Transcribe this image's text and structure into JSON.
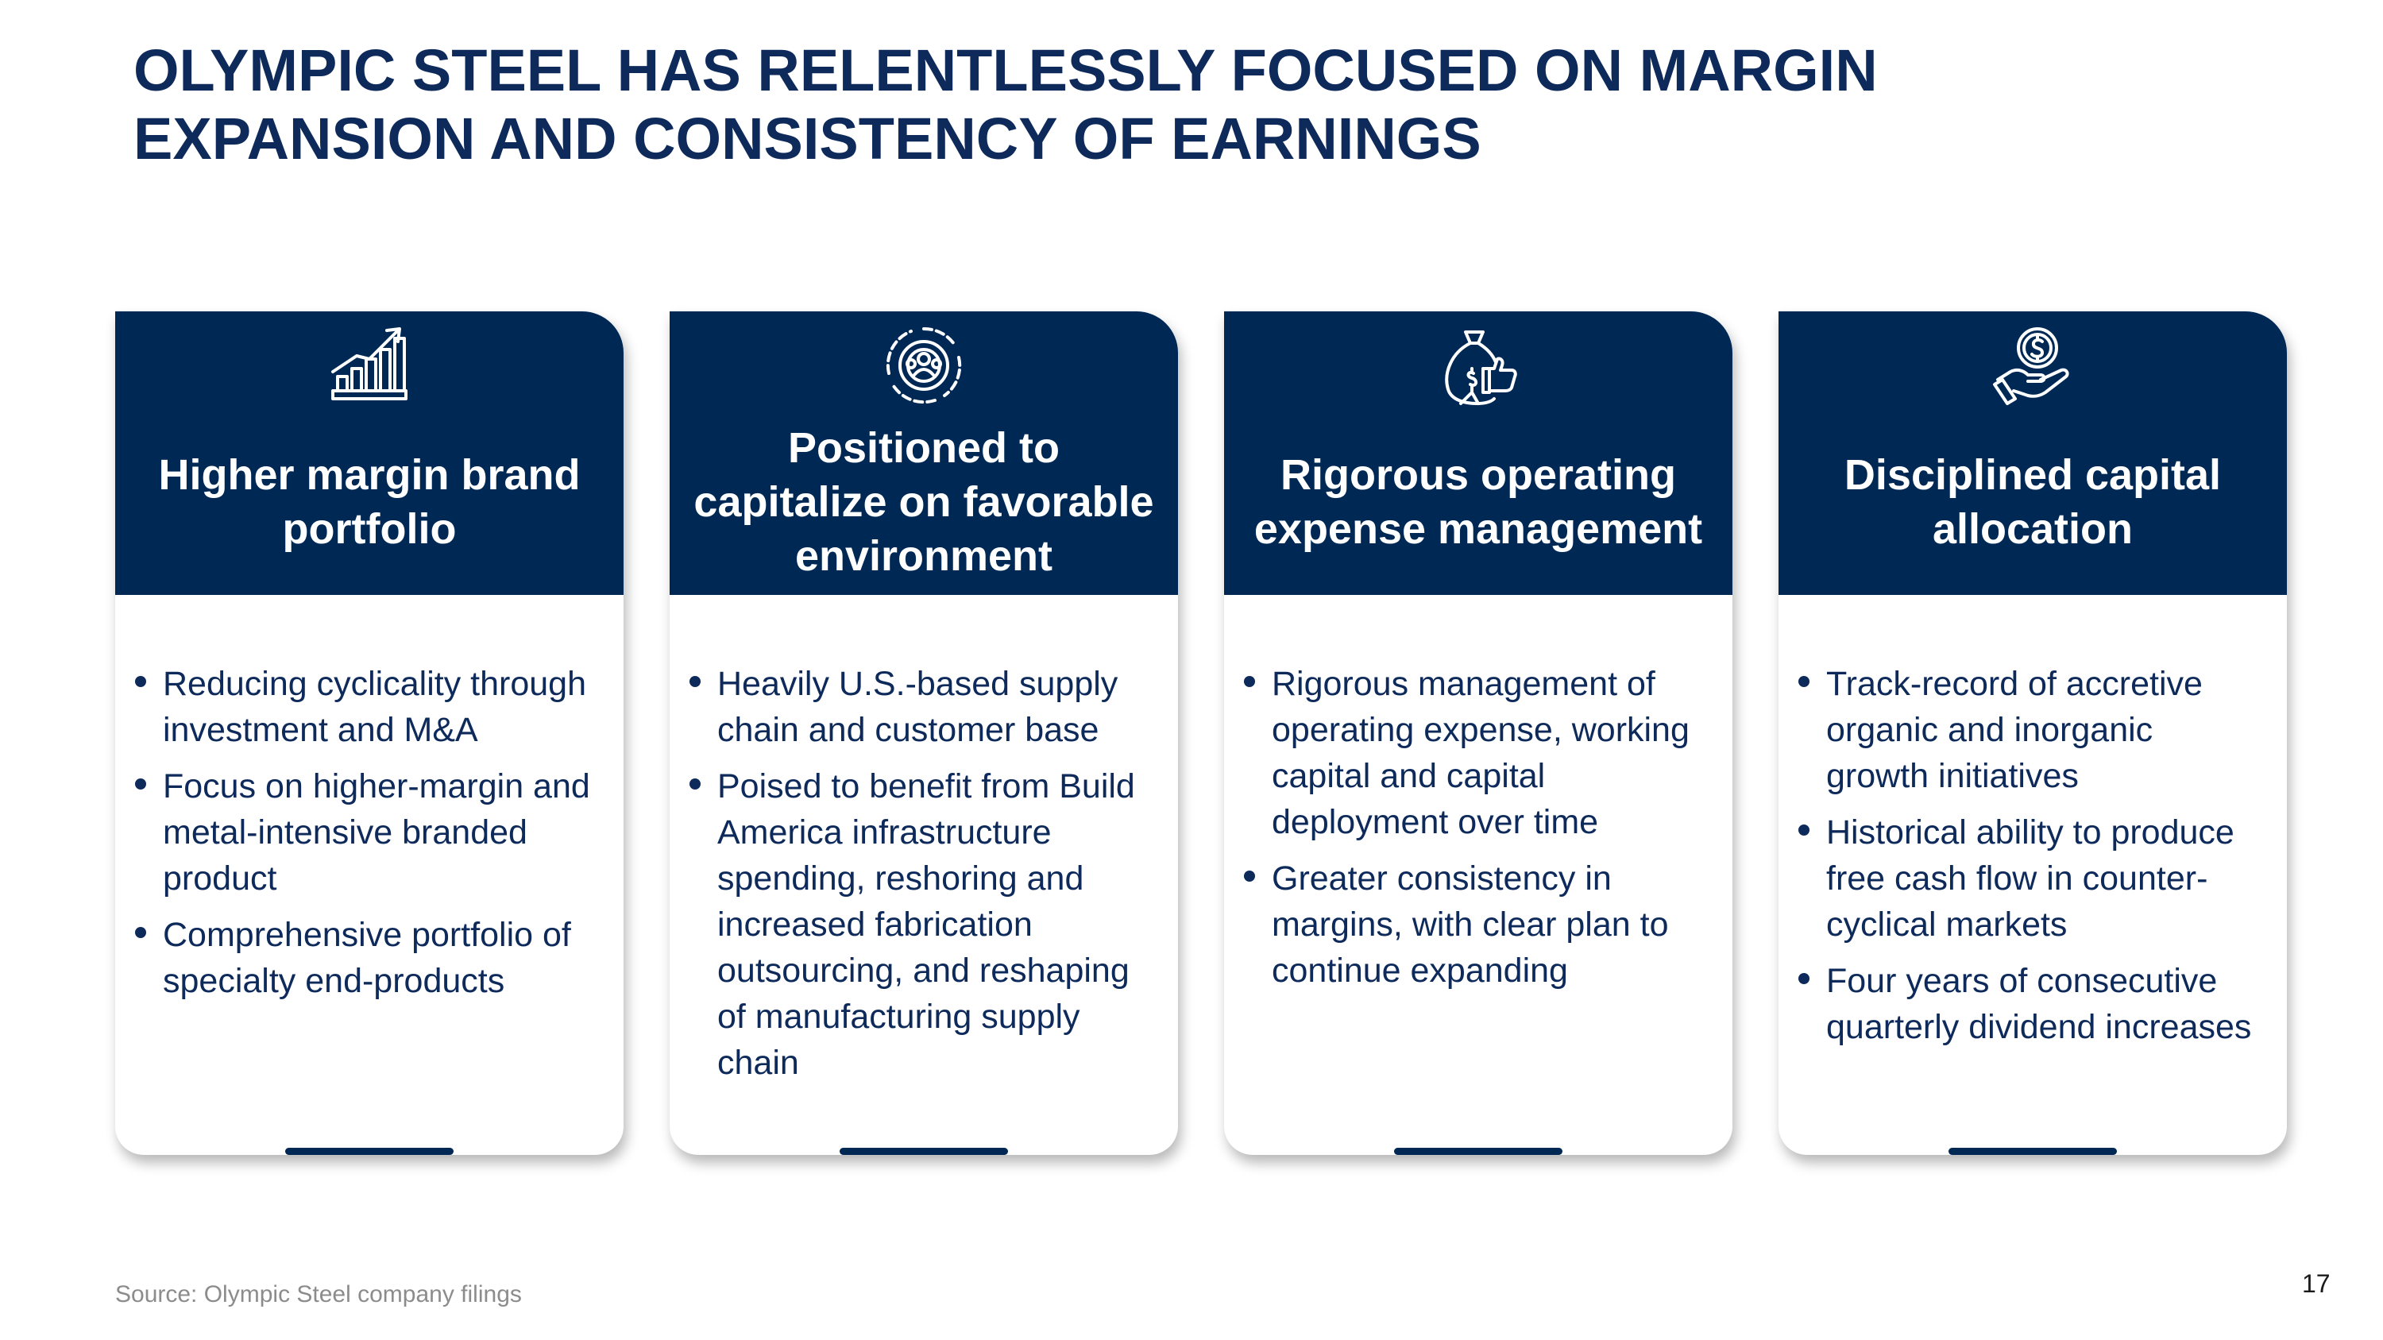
{
  "title": {
    "line1": "OLYMPIC STEEL HAS RELENTLESSLY FOCUSED ON MARGIN",
    "line2": "EXPANSION AND CONSISTENCY OF EARNINGS"
  },
  "colors": {
    "primary_navy": "#002855",
    "text_navy": "#0d2a5b",
    "source_gray": "#8c8c8c"
  },
  "cards": [
    {
      "icon": "growth-chart-icon",
      "title_lines": [
        "Higher margin brand",
        "portfolio"
      ],
      "bullets": [
        {
          "lines": [
            "Reducing cyclicality through",
            "investment and M&A"
          ]
        },
        {
          "lines": [
            "Focus on higher-margin and",
            "metal-intensive branded",
            "product"
          ]
        },
        {
          "lines": [
            "Comprehensive portfolio of",
            "specialty end-products"
          ]
        }
      ]
    },
    {
      "icon": "gear-people-icon",
      "title_lines": [
        "Positioned to",
        "capitalize on favorable",
        "environment"
      ],
      "bullets": [
        {
          "lines": [
            "Heavily U.S.-based supply",
            "chain and customer base"
          ]
        },
        {
          "lines": [
            "Poised to benefit from Build",
            "America infrastructure",
            "spending, reshoring and",
            "increased fabrication",
            "outsourcing, and reshaping",
            "of manufacturing supply",
            "chain"
          ]
        }
      ]
    },
    {
      "icon": "money-bag-thumbs-up-icon",
      "title_lines": [
        "Rigorous operating",
        "expense management"
      ],
      "bullets": [
        {
          "lines": [
            "Rigorous management of",
            "operating expense, working",
            "capital and capital",
            "deployment over time"
          ]
        },
        {
          "lines": [
            "Greater consistency in",
            "margins, with clear plan to",
            "continue expanding"
          ]
        }
      ]
    },
    {
      "icon": "dollar-hand-icon",
      "title_lines": [
        "Disciplined capital",
        "allocation"
      ],
      "bullets": [
        {
          "lines": [
            "Track-record of accretive",
            "organic and inorganic",
            "growth initiatives"
          ]
        },
        {
          "lines": [
            "Historical ability to produce",
            "free cash flow in counter-",
            "cyclical markets"
          ]
        },
        {
          "lines": [
            "Four years of consecutive",
            "quarterly dividend increases"
          ]
        }
      ]
    }
  ],
  "footer": {
    "source": "Source: Olympic Steel company filings",
    "page_number": "17"
  }
}
